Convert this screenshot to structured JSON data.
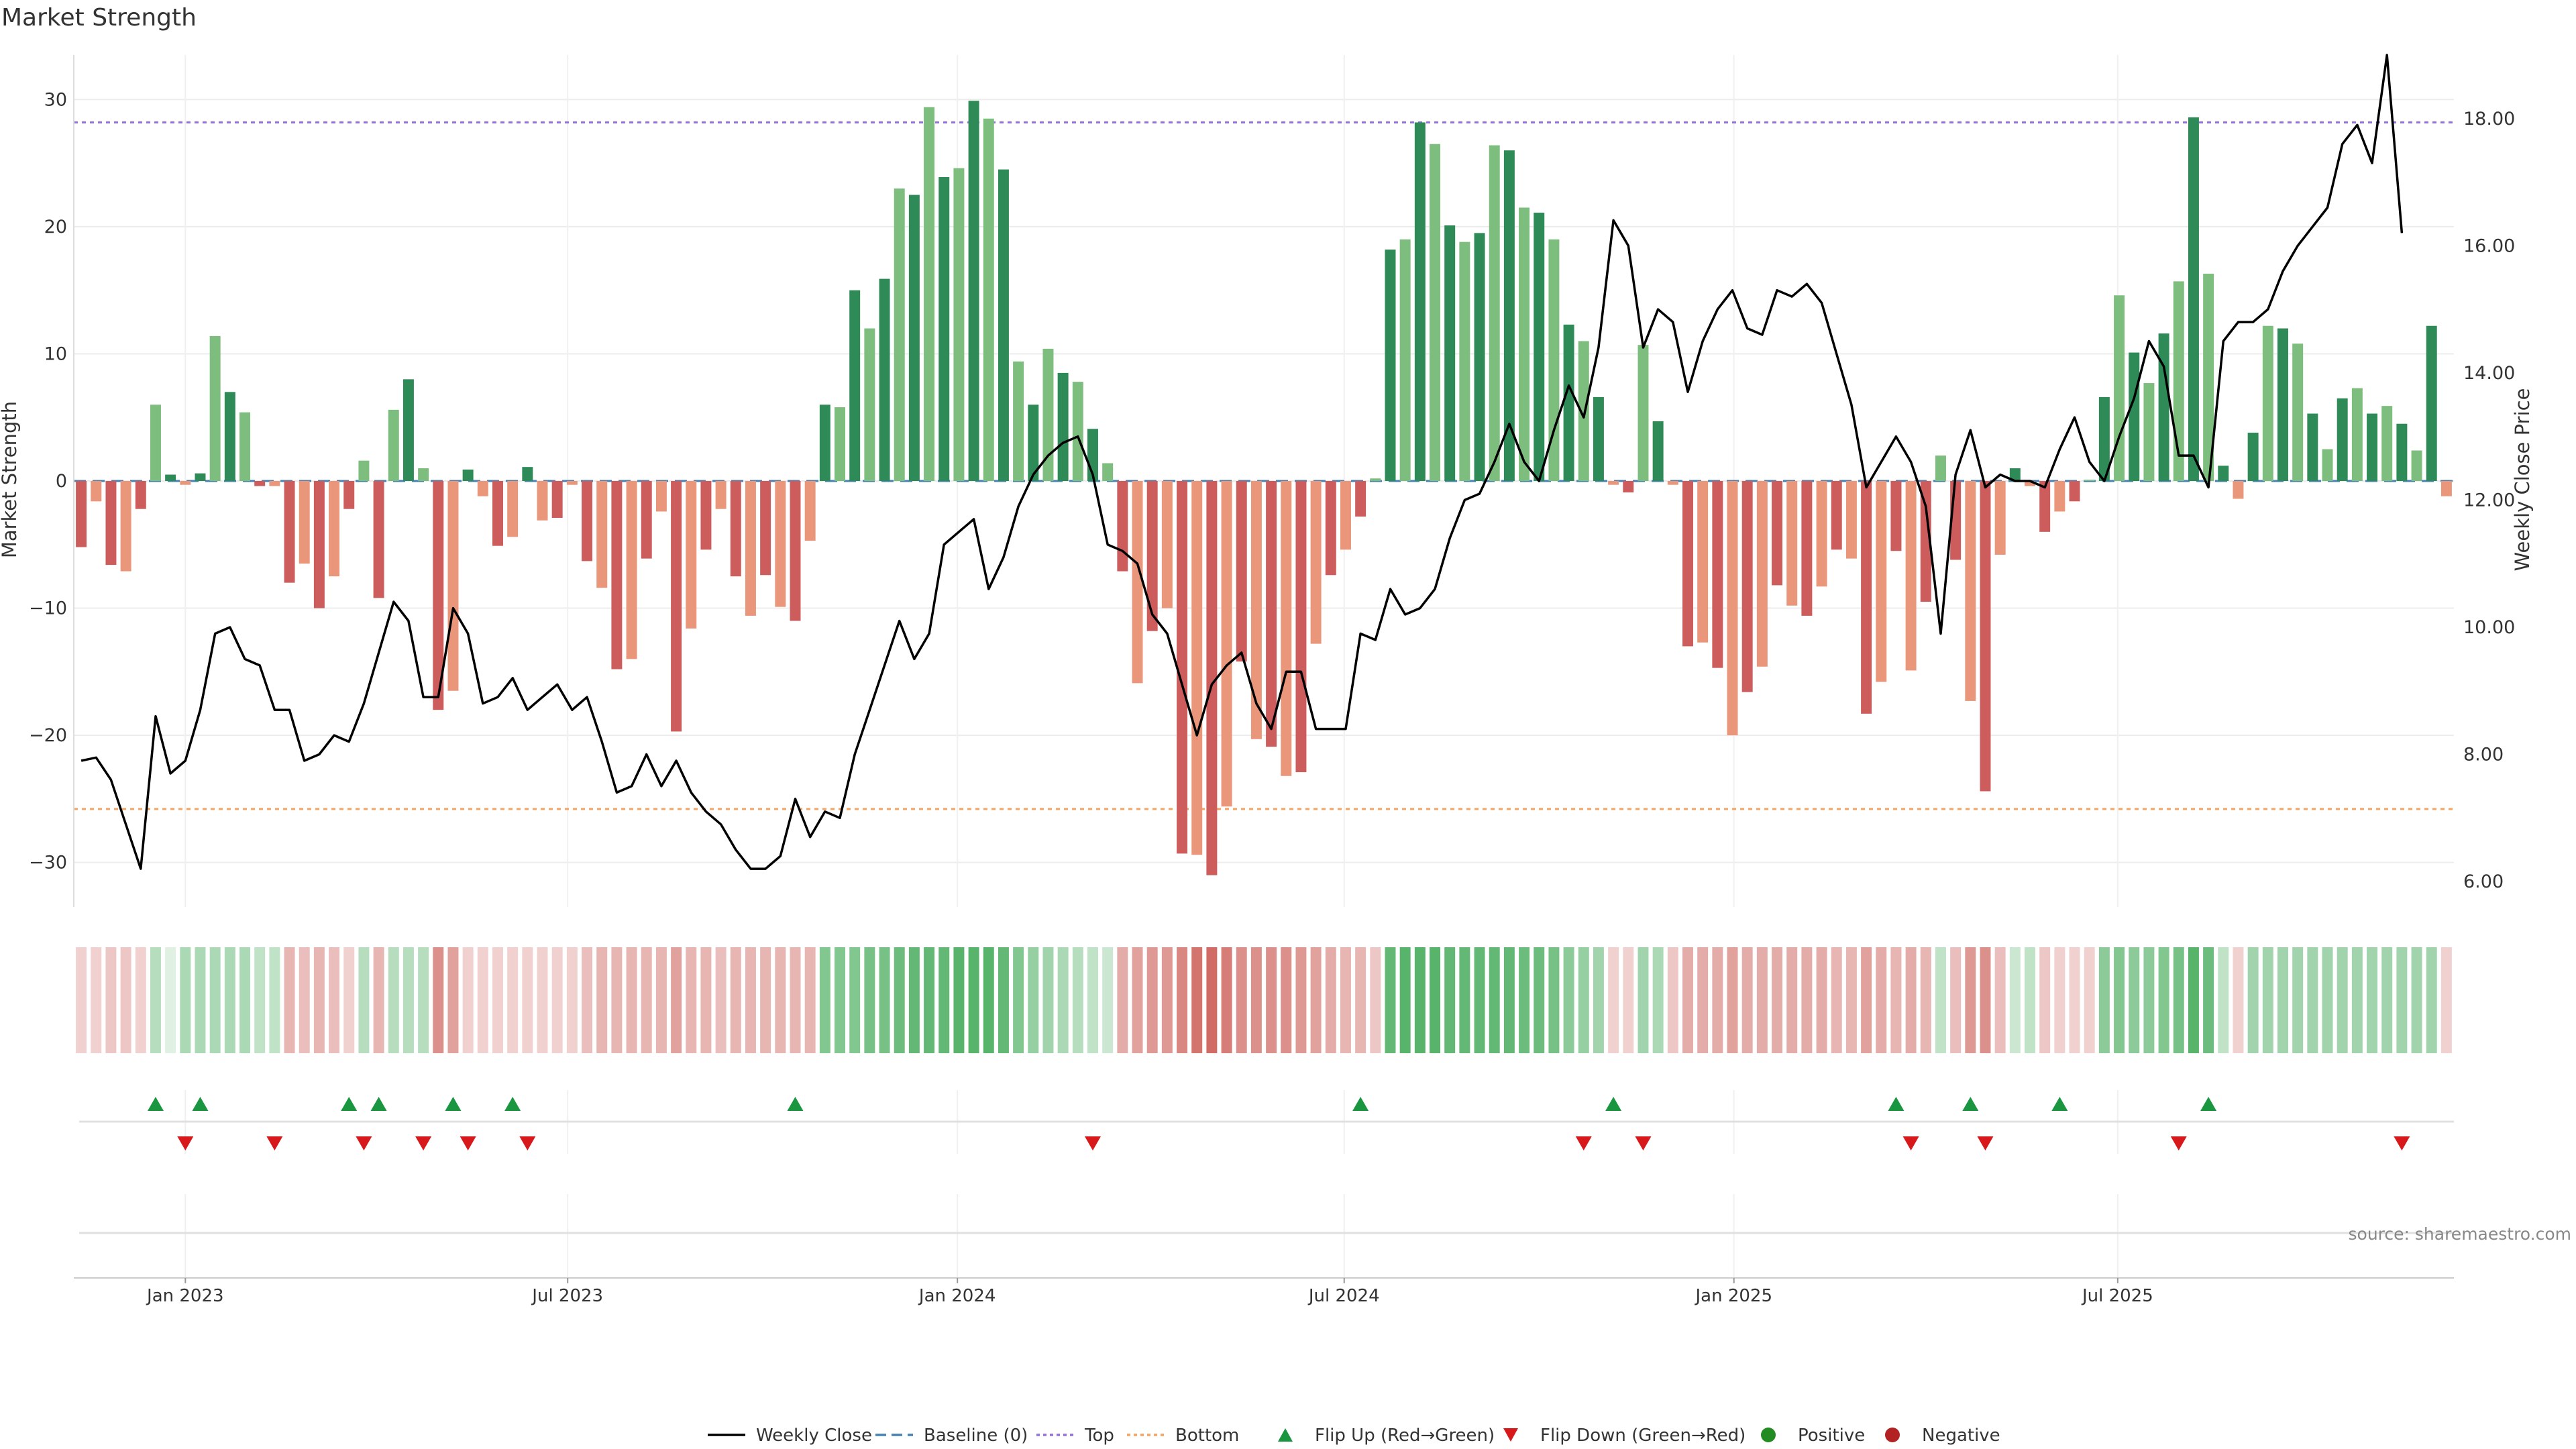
{
  "chart_data": {
    "type": "bar",
    "title": "Market Strength",
    "ylabel": "Market Strength",
    "y2label": "Weekly Close Price",
    "ylim": [
      -33.5,
      33.5
    ],
    "y2lim": [
      5.6,
      19.0
    ],
    "y_ticks": [
      -30,
      -20,
      -10,
      0,
      10,
      20,
      30
    ],
    "y_tick_labels": [
      "−30",
      "−20",
      "−10",
      "0",
      "10",
      "20",
      "30"
    ],
    "y2_ticks": [
      6,
      8,
      10,
      12,
      14,
      16,
      18
    ],
    "y2_tick_labels": [
      "6.00",
      "8.00",
      "10.00",
      "12.00",
      "14.00",
      "16.00",
      "18.00"
    ],
    "x_tick_labels": [
      "Jan 2023",
      "Jul 2023",
      "Jan 2024",
      "Jul 2024",
      "Jan 2025",
      "Jul 2025"
    ],
    "x_tick_weeks": [
      7.5,
      33.2,
      59.4,
      85.4,
      111.6,
      137.4
    ],
    "top_line": 28.2,
    "bottom_line": -25.8,
    "baseline": 0,
    "strength": [
      -5.2,
      -1.6,
      -6.6,
      -7.1,
      -2.2,
      6.0,
      0.5,
      -0.3,
      0.6,
      11.4,
      7.0,
      5.4,
      -0.4,
      -0.4,
      -8.0,
      -6.5,
      -10.0,
      -7.5,
      -2.2,
      1.6,
      -9.2,
      5.6,
      8.0,
      1.0,
      -18.0,
      -16.5,
      0.9,
      -1.2,
      -5.1,
      -4.4,
      1.1,
      -3.1,
      -2.9,
      -0.3,
      -6.3,
      -8.4,
      -14.8,
      -14.0,
      -6.1,
      -2.4,
      -19.7,
      -11.6,
      -5.4,
      -2.2,
      -7.5,
      -10.6,
      -7.4,
      -9.9,
      -11.0,
      -4.7,
      6.0,
      5.8,
      15.0,
      12.0,
      15.9,
      23.0,
      22.5,
      29.4,
      23.9,
      24.6,
      29.9,
      28.5,
      24.5,
      9.4,
      6.0,
      10.4,
      8.5,
      7.8,
      4.1,
      1.4,
      -7.1,
      -15.9,
      -11.8,
      -10.0,
      -29.3,
      -29.4,
      -31.0,
      -25.6,
      -14.2,
      -20.3,
      -20.9,
      -23.2,
      -22.9,
      -12.8,
      -7.4,
      -5.4,
      -2.8,
      0.2,
      18.2,
      19.0,
      28.2,
      26.5,
      20.1,
      18.8,
      19.5,
      26.4,
      26.0,
      21.5,
      21.1,
      19.0,
      12.3,
      11.0,
      6.6,
      -0.3,
      -0.9,
      10.7,
      4.7,
      -0.3,
      -13.0,
      -12.7,
      -14.7,
      -20.0,
      -16.6,
      -14.6,
      -8.2,
      -9.8,
      -10.6,
      -8.3,
      -5.4,
      -6.1,
      -18.3,
      -15.8,
      -5.5,
      -14.9,
      -9.5,
      2.0,
      -6.2,
      -17.3,
      -24.4,
      -5.8,
      1.0,
      -0.4,
      -4.0,
      -2.4,
      -1.6,
      0.1,
      6.6,
      14.6,
      10.1,
      7.7,
      11.6,
      15.7,
      28.6,
      16.3,
      1.2,
      -1.4,
      3.8,
      12.2,
      12.0,
      10.8,
      5.3,
      2.5,
      6.5,
      7.3,
      5.3,
      5.9,
      4.5,
      2.4,
      12.2,
      -1.2
    ],
    "heat": [
      -0.25,
      -0.25,
      -0.3,
      -0.3,
      -0.25,
      0.35,
      0.15,
      0.4,
      0.4,
      0.4,
      0.4,
      0.4,
      0.3,
      0.3,
      -0.4,
      -0.35,
      -0.4,
      -0.35,
      -0.25,
      0.35,
      -0.4,
      0.35,
      0.35,
      0.35,
      -0.6,
      -0.5,
      -0.25,
      -0.25,
      -0.25,
      -0.25,
      -0.25,
      -0.25,
      -0.25,
      -0.25,
      -0.35,
      -0.4,
      -0.4,
      -0.4,
      -0.4,
      -0.4,
      -0.5,
      -0.4,
      -0.4,
      -0.35,
      -0.4,
      -0.4,
      -0.4,
      -0.4,
      -0.4,
      -0.4,
      0.6,
      0.6,
      0.6,
      0.65,
      0.65,
      0.7,
      0.75,
      0.75,
      0.75,
      0.8,
      0.8,
      0.8,
      0.75,
      0.6,
      0.5,
      0.45,
      0.4,
      0.35,
      0.3,
      0.25,
      -0.45,
      -0.5,
      -0.55,
      -0.55,
      -0.65,
      -0.75,
      -0.8,
      -0.7,
      -0.6,
      -0.6,
      -0.6,
      -0.6,
      -0.55,
      -0.5,
      -0.45,
      -0.4,
      -0.4,
      -0.3,
      0.75,
      0.8,
      0.8,
      0.8,
      0.75,
      0.75,
      0.75,
      0.75,
      0.75,
      0.7,
      0.7,
      0.65,
      0.55,
      0.5,
      0.45,
      -0.25,
      -0.25,
      0.45,
      0.4,
      -0.3,
      -0.45,
      -0.45,
      -0.45,
      -0.5,
      -0.45,
      -0.45,
      -0.45,
      -0.45,
      -0.45,
      -0.45,
      -0.4,
      -0.4,
      -0.5,
      -0.45,
      -0.4,
      -0.45,
      -0.4,
      0.3,
      -0.35,
      -0.55,
      -0.6,
      -0.35,
      0.25,
      0.3,
      -0.3,
      -0.25,
      -0.25,
      -0.25,
      0.55,
      0.6,
      0.55,
      0.55,
      0.6,
      0.65,
      0.8,
      0.7,
      0.3,
      -0.25,
      0.45,
      0.45,
      0.45,
      0.45,
      0.45,
      0.45,
      0.45,
      0.45,
      0.45,
      0.45,
      0.45,
      0.45,
      0.45,
      -0.25
    ],
    "flip_up": [
      5,
      8,
      18,
      20,
      25,
      29,
      48,
      86,
      103,
      122,
      127,
      133,
      143
    ],
    "flip_down": [
      7,
      13,
      19,
      23,
      26,
      30,
      68,
      101,
      105,
      123,
      128,
      141,
      156
    ],
    "price": [
      7.9,
      7.95,
      7.6,
      6.9,
      6.2,
      8.6,
      7.7,
      7.9,
      8.7,
      9.9,
      10.0,
      9.5,
      9.4,
      8.7,
      8.7,
      7.9,
      8.0,
      8.3,
      8.2,
      8.8,
      9.6,
      10.4,
      10.1,
      8.9,
      8.9,
      10.3,
      9.9,
      8.8,
      8.9,
      9.2,
      8.7,
      8.9,
      9.1,
      8.7,
      8.9,
      8.2,
      7.4,
      7.5,
      8.0,
      7.5,
      7.9,
      7.4,
      7.1,
      6.9,
      6.5,
      6.2,
      6.2,
      6.4,
      7.3,
      6.7,
      7.1,
      7.0,
      8.0,
      8.7,
      9.4,
      10.1,
      9.5,
      9.9,
      11.3,
      11.5,
      11.7,
      10.6,
      11.1,
      11.9,
      12.4,
      12.7,
      12.9,
      13.0,
      12.4,
      11.3,
      11.2,
      11.0,
      10.2,
      9.9,
      9.1,
      8.3,
      9.1,
      9.4,
      9.6,
      8.8,
      8.4,
      9.3,
      9.3,
      8.4,
      8.4,
      8.4,
      9.9,
      9.8,
      10.6,
      10.2,
      10.3,
      10.6,
      11.4,
      12.0,
      12.1,
      12.6,
      13.2,
      12.6,
      12.3,
      13.1,
      13.8,
      13.3,
      14.4,
      16.4,
      16.0,
      14.4,
      15.0,
      14.8,
      13.7,
      14.5,
      15.0,
      15.3,
      14.7,
      14.6,
      15.3,
      15.2,
      15.4,
      15.1,
      14.3,
      13.5,
      12.2,
      12.6,
      13.0,
      12.6,
      11.9,
      9.9,
      12.4,
      13.1,
      12.2,
      12.4,
      12.3,
      12.3,
      12.2,
      12.8,
      13.3,
      12.6,
      12.3,
      13.0,
      13.6,
      14.5,
      14.1,
      12.7,
      12.7,
      12.2,
      14.5,
      14.8,
      14.8,
      15.0,
      15.6,
      16.0,
      16.3,
      16.6,
      17.6,
      17.9,
      17.3,
      19.0,
      16.2
    ],
    "legend": [
      "Weekly Close",
      "Baseline (0)",
      "Top",
      "Bottom",
      "Flip Up (Red→Green)",
      "Flip Down (Green→Red)",
      "Positive",
      "Negative"
    ],
    "legend_placement": "bottom-center",
    "grid": true,
    "source_note": "source: sharemaestro.com",
    "colors": {
      "pos_strong": "#2e8b57",
      "pos_light": "#7dbd7d",
      "neg_strong": "#cd5c5c",
      "neg_light": "#e9967a",
      "price_line": "#000000",
      "baseline": "#4682b4",
      "top": "#9370db",
      "bottom": "#f4a460",
      "flip_up": "#1a9641",
      "flip_down": "#d7191c",
      "positive_dot": "#228b22",
      "negative_dot": "#b22222"
    }
  }
}
